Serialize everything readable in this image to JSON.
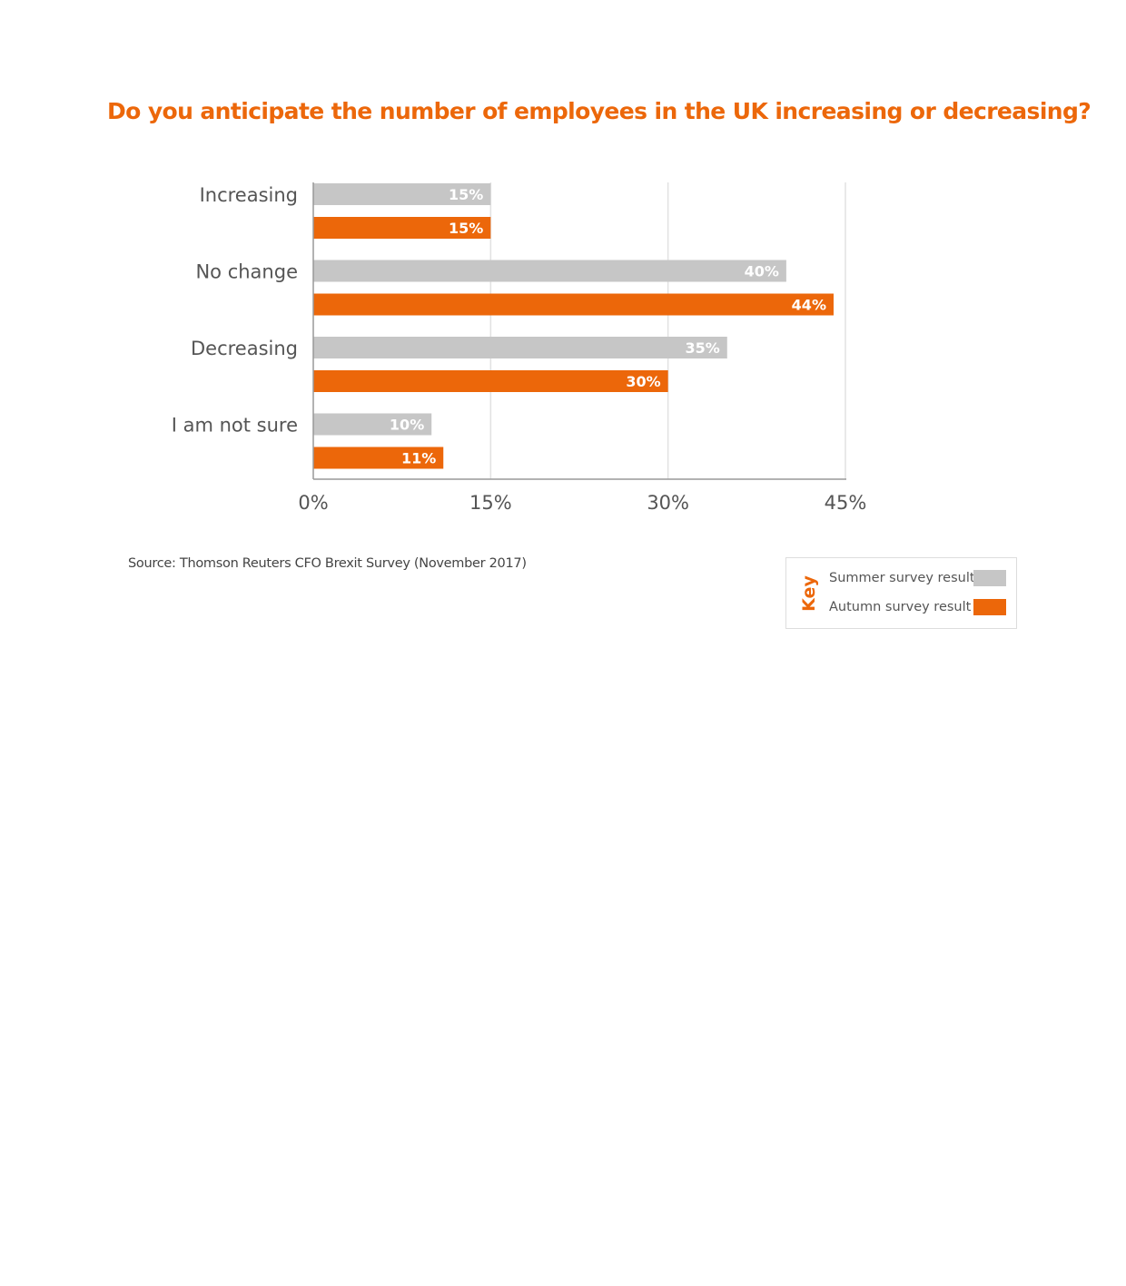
{
  "colors": {
    "summer": "#c6c6c6",
    "autumn": "#ec670a",
    "grid": "#e2e2e2",
    "axis": "#999999"
  },
  "chart_data": {
    "type": "bar",
    "orientation": "horizontal",
    "title": "Do you anticipate the number of employees in the UK increasing or decreasing?",
    "categories": [
      "Increasing",
      "No change",
      "Decreasing",
      "I am not sure"
    ],
    "series": [
      {
        "name": "Summer survey result",
        "values": [
          15,
          40,
          35,
          10
        ]
      },
      {
        "name": "Autumn survey result",
        "values": [
          15,
          44,
          30,
          11
        ]
      }
    ],
    "xlim": [
      0,
      45
    ],
    "xticks": [
      0,
      15,
      30,
      45
    ],
    "xtick_labels": [
      "0%",
      "15%",
      "30%",
      "45%"
    ],
    "grid": true,
    "legend_title": "Key",
    "legend_position": "bottom-right"
  },
  "source": "Source: Thomson Reuters CFO Brexit Survey (November 2017)"
}
